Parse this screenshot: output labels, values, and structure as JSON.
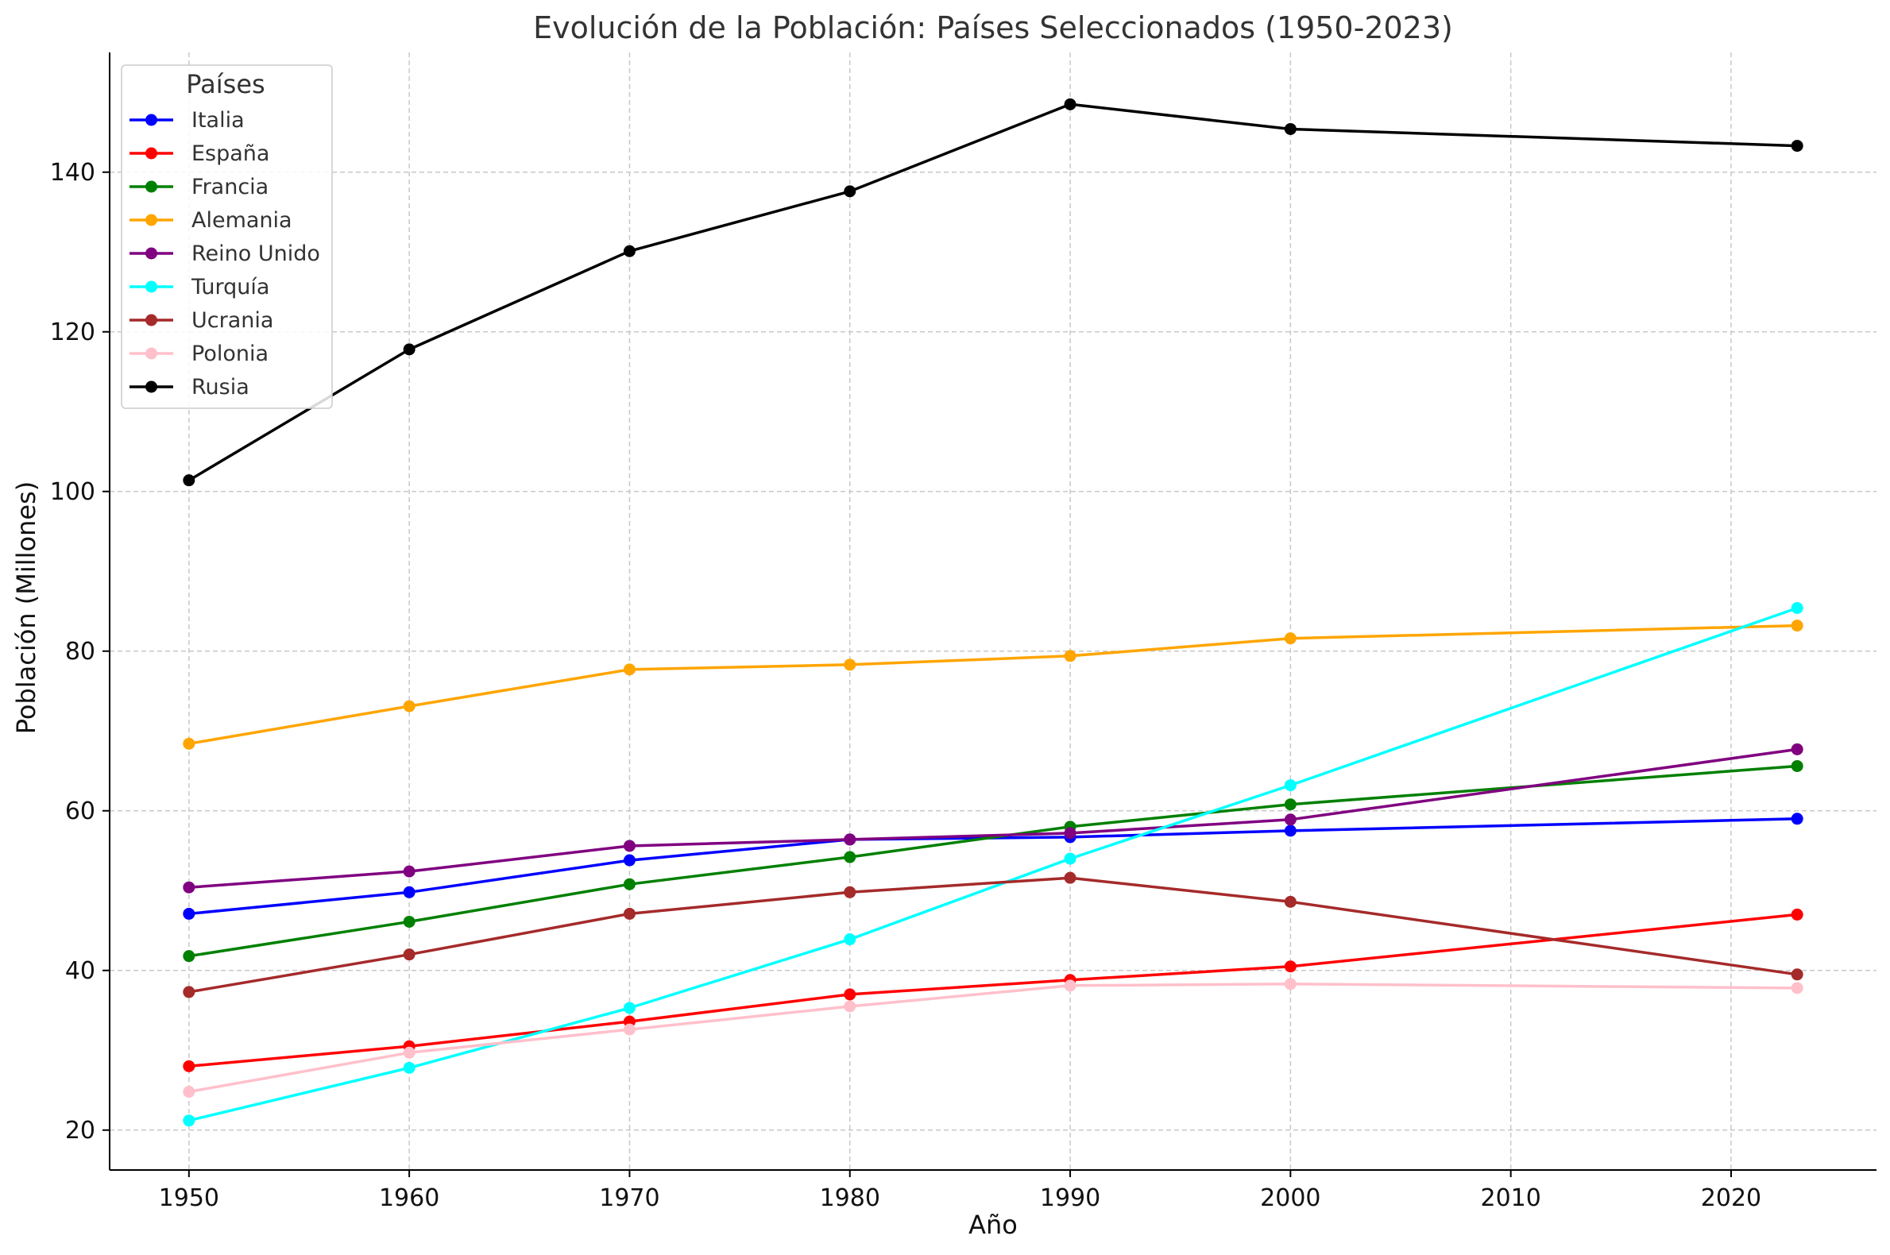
{
  "chart_data": {
    "type": "line",
    "title": "Evolución de la Población: Países Seleccionados (1950-2023)",
    "xlabel": "Año",
    "ylabel": "Población (Millones)",
    "xlim": [
      1946.4,
      2026.6
    ],
    "ylim": [
      15,
      155
    ],
    "xticks": [
      1950,
      1960,
      1970,
      1980,
      1990,
      2000,
      2010,
      2020
    ],
    "yticks": [
      20,
      40,
      60,
      80,
      100,
      120,
      140
    ],
    "grid": true,
    "legend": {
      "title": "Países",
      "position": "top-left"
    },
    "x": [
      1950,
      1960,
      1970,
      1980,
      1990,
      2000,
      2023
    ],
    "series": [
      {
        "name": "Italia",
        "color": "#0000ff",
        "values": [
          47.1,
          49.8,
          53.8,
          56.4,
          56.7,
          57.5,
          59.0
        ]
      },
      {
        "name": "España",
        "color": "#ff0000",
        "values": [
          28.0,
          30.5,
          33.6,
          37.0,
          38.8,
          40.5,
          47.0
        ]
      },
      {
        "name": "Francia",
        "color": "#008000",
        "values": [
          41.8,
          46.1,
          50.8,
          54.2,
          58.0,
          60.8,
          65.6
        ]
      },
      {
        "name": "Alemania",
        "color": "#ffa500",
        "values": [
          68.4,
          73.1,
          77.7,
          78.3,
          79.4,
          81.6,
          83.2
        ]
      },
      {
        "name": "Reino Unido",
        "color": "#800080",
        "values": [
          50.4,
          52.4,
          55.6,
          56.4,
          57.2,
          58.9,
          67.7
        ]
      },
      {
        "name": "Turquía",
        "color": "#00ffff",
        "values": [
          21.2,
          27.8,
          35.3,
          43.9,
          54.0,
          63.2,
          85.4
        ]
      },
      {
        "name": "Ucrania",
        "color": "#a52a2a",
        "values": [
          37.3,
          42.0,
          47.1,
          49.8,
          51.6,
          48.6,
          39.5
        ]
      },
      {
        "name": "Polonia",
        "color": "#ffc0cb",
        "values": [
          24.8,
          29.7,
          32.6,
          35.5,
          38.1,
          38.3,
          37.8
        ]
      },
      {
        "name": "Rusia",
        "color": "#000000",
        "values": [
          101.4,
          117.8,
          130.1,
          137.6,
          148.5,
          145.4,
          143.3
        ]
      }
    ]
  }
}
